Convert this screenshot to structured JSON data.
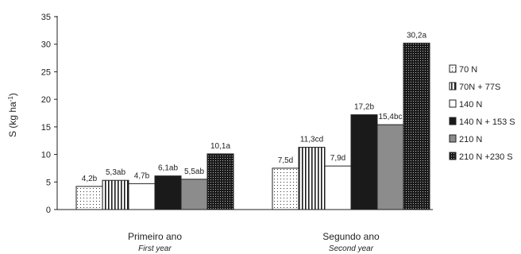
{
  "chart_data": {
    "type": "bar",
    "ylabel": "S (kg ha",
    "ylabel_sup": "-1",
    "ylabel_close": ")",
    "ylim": [
      0,
      35
    ],
    "yticks": [
      "0",
      "5",
      "10",
      "15",
      "20",
      "25",
      "30",
      "35"
    ],
    "grid": false,
    "legend_position": "right",
    "categories": [
      {
        "label": "Primeiro ano",
        "sublabel": "First year"
      },
      {
        "label": "Segundo ano",
        "sublabel": "Second year"
      }
    ],
    "series": [
      {
        "name": "70 N",
        "pattern": "dots",
        "values": [
          4.2,
          7.5
        ],
        "labels": [
          "4,2b",
          "7,5d"
        ]
      },
      {
        "name": "70N + 77S",
        "pattern": "vlines",
        "values": [
          5.3,
          11.3
        ],
        "labels": [
          "5,3ab",
          "11,3cd"
        ]
      },
      {
        "name": "140 N",
        "pattern": "white",
        "values": [
          4.7,
          7.9
        ],
        "labels": [
          "4,7b",
          "7,9d"
        ]
      },
      {
        "name": "140 N + 153 S",
        "pattern": "black",
        "values": [
          6.1,
          17.2
        ],
        "labels": [
          "6,1ab",
          "17,2b"
        ]
      },
      {
        "name": "210 N",
        "pattern": "gray",
        "values": [
          5.5,
          15.4
        ],
        "labels": [
          "5,5ab",
          "15,4bc"
        ]
      },
      {
        "name": "210 N +230 S",
        "pattern": "darkdots",
        "values": [
          10.1,
          30.2
        ],
        "labels": [
          "10,1a",
          "30,2a"
        ]
      }
    ],
    "colors": {
      "black": "#1a1a1a",
      "gray": "#8c8c8c",
      "white": "#ffffff",
      "outline": "#222222"
    }
  }
}
